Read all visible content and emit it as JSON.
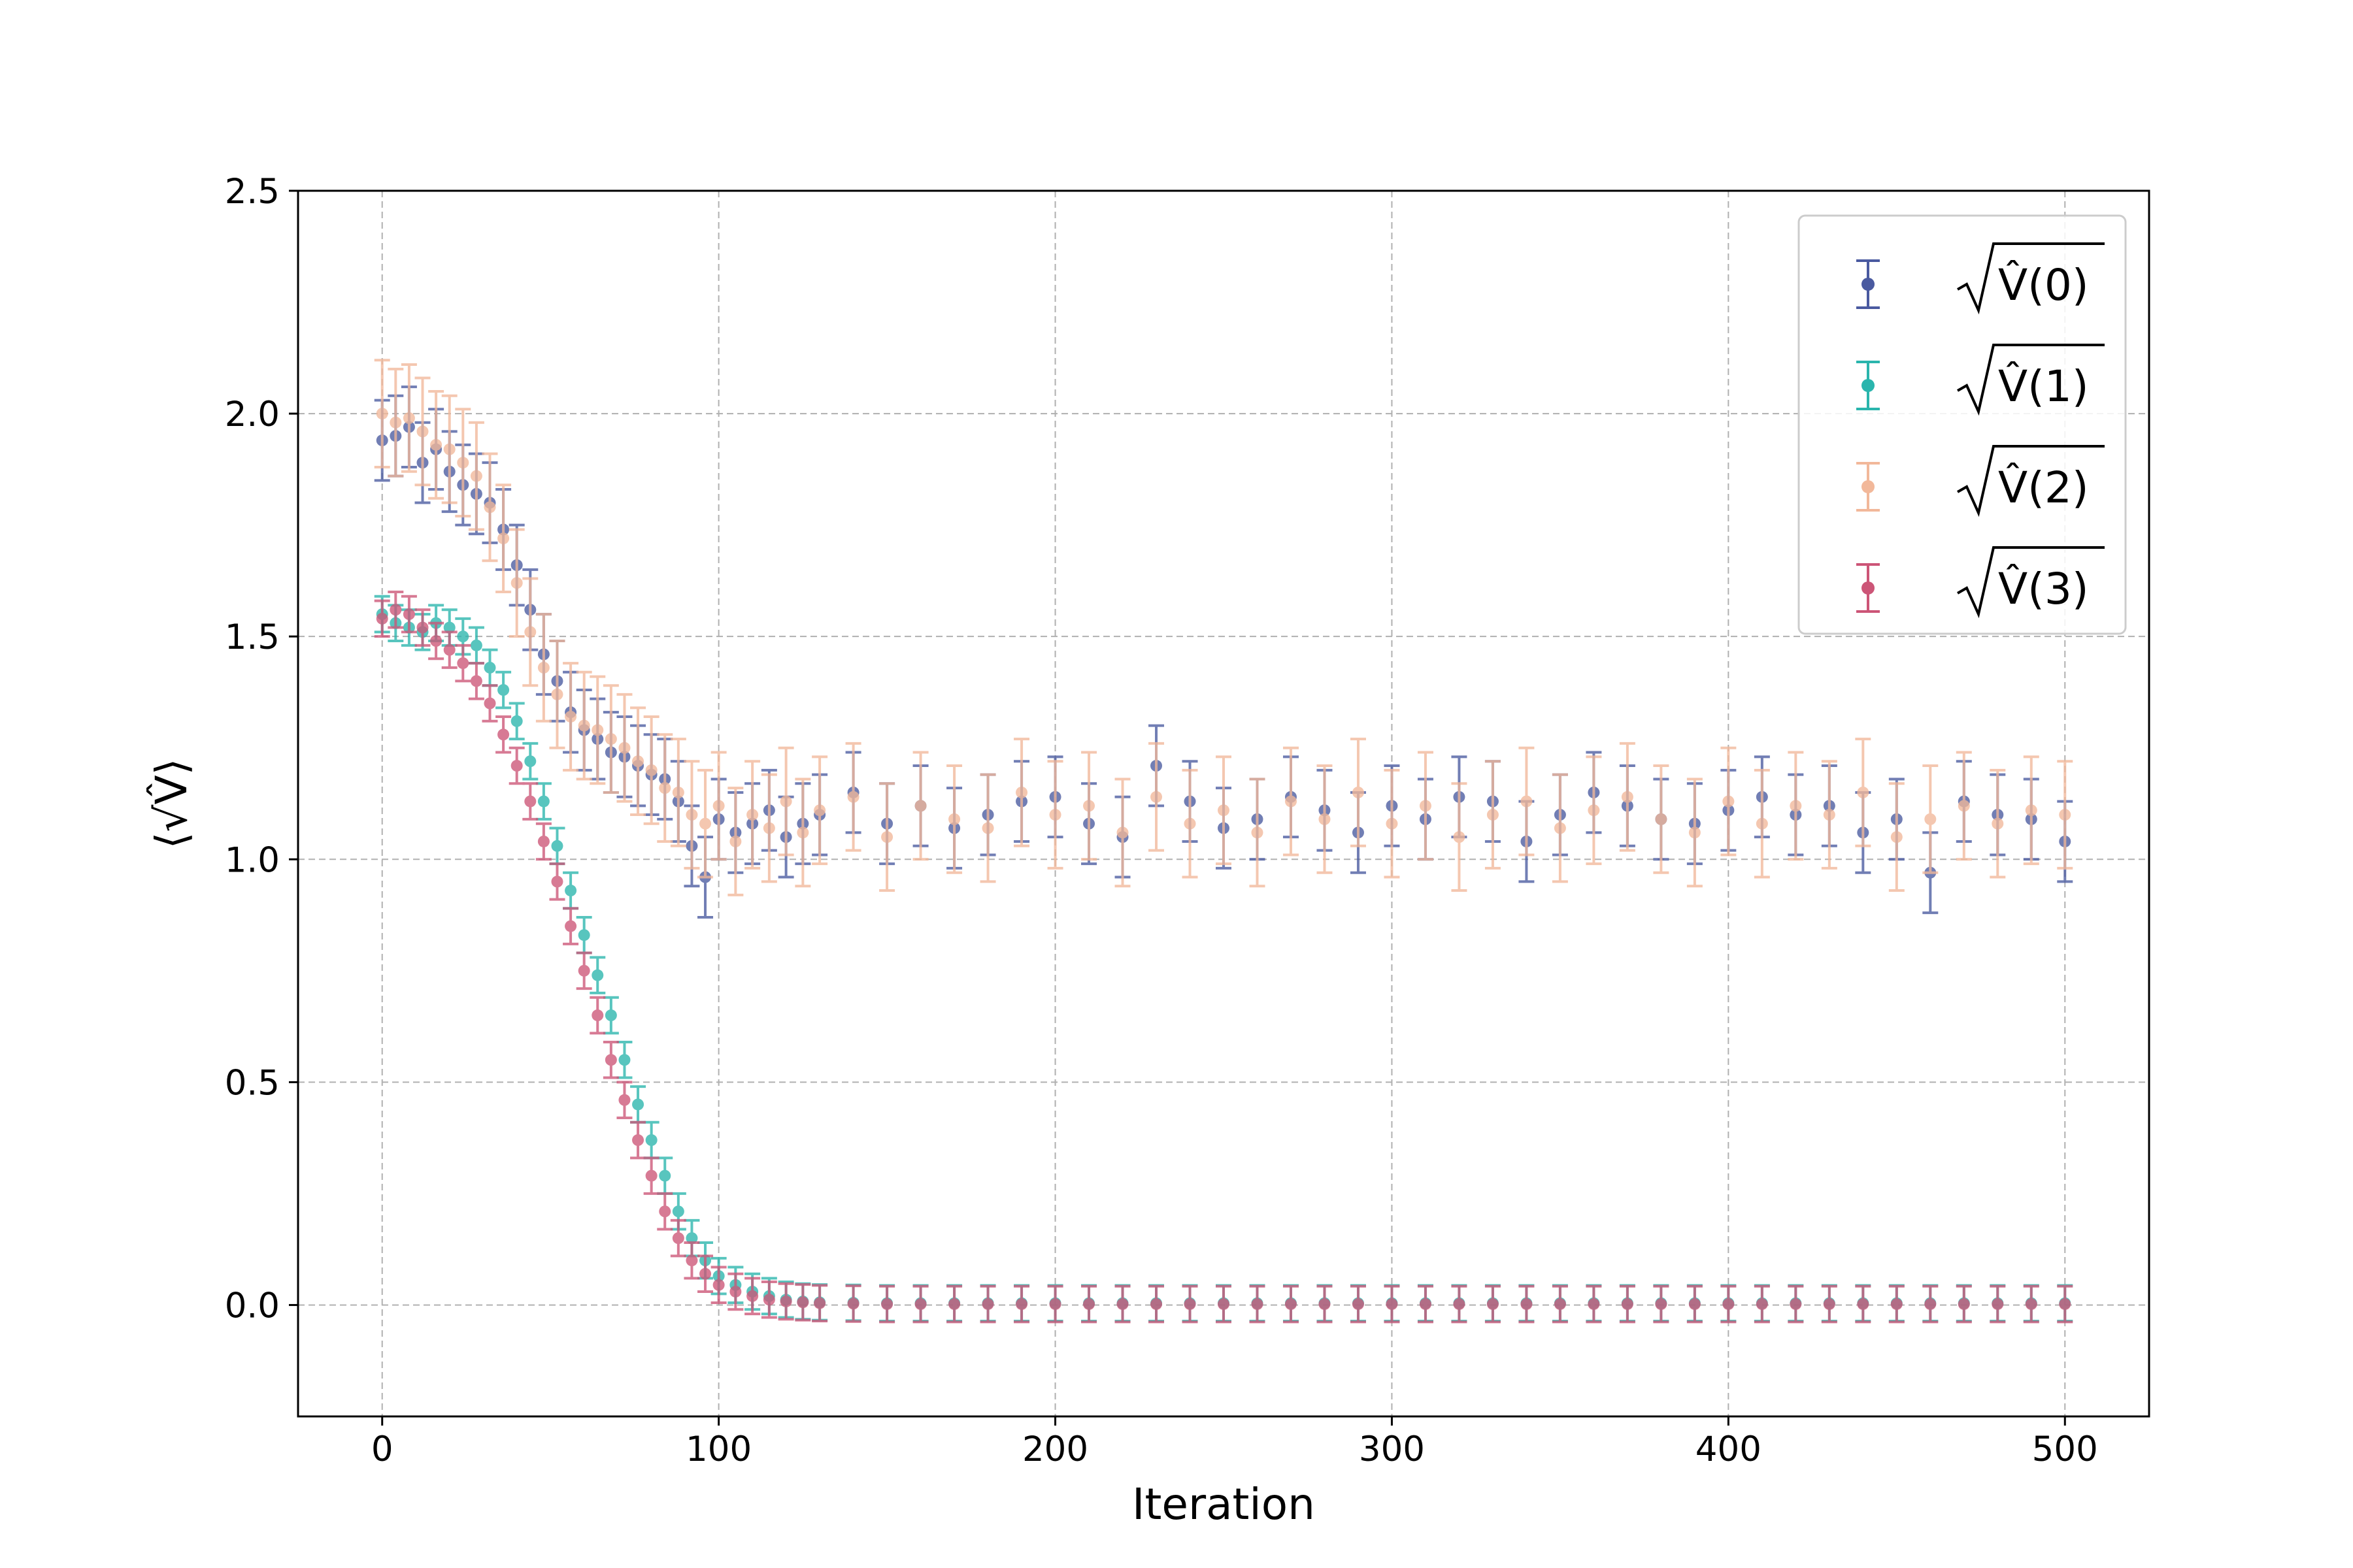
{
  "chart_data": {
    "type": "scatter",
    "title": "",
    "xlabel": "Iteration",
    "ylabel": "⟨√V̂⟩",
    "xlim": [
      -25,
      525
    ],
    "ylim": [
      -0.25,
      2.5
    ],
    "xticks": [
      0,
      100,
      200,
      300,
      400,
      500
    ],
    "xtick_labels": [
      "0",
      "100",
      "200",
      "300",
      "400",
      "500"
    ],
    "yticks": [
      0.0,
      0.5,
      1.0,
      1.5,
      2.0,
      2.5
    ],
    "ytick_labels": [
      "0.0",
      "0.5",
      "1.0",
      "1.5",
      "2.0",
      "2.5"
    ],
    "grid": true,
    "legend_position": "top-right",
    "error_bars": true,
    "iterations": [
      0,
      4,
      8,
      12,
      16,
      20,
      24,
      28,
      32,
      36,
      40,
      44,
      48,
      52,
      56,
      60,
      64,
      68,
      72,
      76,
      80,
      84,
      88,
      92,
      96,
      100,
      105,
      110,
      115,
      120,
      125,
      130,
      140,
      150,
      160,
      170,
      180,
      190,
      200,
      210,
      220,
      230,
      240,
      250,
      260,
      270,
      280,
      290,
      300,
      310,
      320,
      330,
      340,
      350,
      360,
      370,
      380,
      390,
      400,
      410,
      420,
      430,
      440,
      450,
      460,
      470,
      480,
      490,
      500
    ],
    "series": [
      {
        "name": "√V̂(0)",
        "legend_label": "V̂(0)",
        "color": "#4a5aa0",
        "error": 0.09,
        "values": [
          1.94,
          1.95,
          1.97,
          1.89,
          1.92,
          1.87,
          1.84,
          1.82,
          1.8,
          1.74,
          1.66,
          1.56,
          1.46,
          1.4,
          1.33,
          1.29,
          1.27,
          1.24,
          1.23,
          1.21,
          1.19,
          1.18,
          1.13,
          1.03,
          0.96,
          1.09,
          1.06,
          1.08,
          1.11,
          1.05,
          1.08,
          1.1,
          1.15,
          1.08,
          1.12,
          1.07,
          1.1,
          1.13,
          1.14,
          1.08,
          1.05,
          1.21,
          1.13,
          1.07,
          1.09,
          1.14,
          1.11,
          1.06,
          1.12,
          1.09,
          1.14,
          1.13,
          1.04,
          1.1,
          1.15,
          1.12,
          1.09,
          1.08,
          1.11,
          1.14,
          1.1,
          1.12,
          1.06,
          1.09,
          0.97,
          1.13,
          1.1,
          1.09,
          1.04
        ]
      },
      {
        "name": "√V̂(1)",
        "legend_label": "V̂(1)",
        "color": "#2ab5ad",
        "error": 0.04,
        "values": [
          1.55,
          1.53,
          1.52,
          1.51,
          1.53,
          1.52,
          1.5,
          1.48,
          1.43,
          1.38,
          1.31,
          1.22,
          1.13,
          1.03,
          0.93,
          0.83,
          0.74,
          0.65,
          0.55,
          0.45,
          0.37,
          0.29,
          0.21,
          0.15,
          0.1,
          0.065,
          0.045,
          0.03,
          0.02,
          0.012,
          0.008,
          0.006,
          0.005,
          0.004,
          0.004,
          0.004,
          0.004,
          0.004,
          0.004,
          0.004,
          0.004,
          0.004,
          0.004,
          0.004,
          0.004,
          0.004,
          0.004,
          0.004,
          0.004,
          0.004,
          0.004,
          0.004,
          0.004,
          0.004,
          0.004,
          0.004,
          0.004,
          0.004,
          0.004,
          0.004,
          0.004,
          0.004,
          0.004,
          0.004,
          0.004,
          0.004,
          0.004,
          0.004,
          0.004
        ]
      },
      {
        "name": "√V̂(2)",
        "legend_label": "V̂(2)",
        "color": "#f2b89a",
        "error": 0.12,
        "values": [
          2.0,
          1.98,
          1.99,
          1.96,
          1.93,
          1.92,
          1.89,
          1.86,
          1.79,
          1.72,
          1.62,
          1.51,
          1.43,
          1.37,
          1.32,
          1.3,
          1.29,
          1.27,
          1.25,
          1.22,
          1.2,
          1.16,
          1.15,
          1.1,
          1.08,
          1.12,
          1.04,
          1.1,
          1.07,
          1.13,
          1.06,
          1.11,
          1.14,
          1.05,
          1.12,
          1.09,
          1.07,
          1.15,
          1.1,
          1.12,
          1.06,
          1.14,
          1.08,
          1.11,
          1.06,
          1.13,
          1.09,
          1.15,
          1.08,
          1.12,
          1.05,
          1.1,
          1.13,
          1.07,
          1.11,
          1.14,
          1.09,
          1.06,
          1.13,
          1.08,
          1.12,
          1.1,
          1.15,
          1.05,
          1.09,
          1.12,
          1.08,
          1.11,
          1.1
        ]
      },
      {
        "name": "√V̂(3)",
        "legend_label": "V̂(3)",
        "color": "#cc5577",
        "error": 0.04,
        "values": [
          1.54,
          1.56,
          1.55,
          1.52,
          1.49,
          1.47,
          1.44,
          1.4,
          1.35,
          1.28,
          1.21,
          1.13,
          1.04,
          0.95,
          0.85,
          0.75,
          0.65,
          0.55,
          0.46,
          0.37,
          0.29,
          0.21,
          0.15,
          0.1,
          0.07,
          0.045,
          0.03,
          0.02,
          0.012,
          0.008,
          0.006,
          0.004,
          0.003,
          0.002,
          0.002,
          0.002,
          0.002,
          0.002,
          0.002,
          0.002,
          0.002,
          0.002,
          0.002,
          0.002,
          0.002,
          0.002,
          0.002,
          0.002,
          0.002,
          0.002,
          0.002,
          0.002,
          0.002,
          0.002,
          0.002,
          0.002,
          0.002,
          0.002,
          0.002,
          0.002,
          0.002,
          0.002,
          0.002,
          0.002,
          0.002,
          0.002,
          0.002,
          0.002,
          0.002
        ]
      }
    ]
  }
}
